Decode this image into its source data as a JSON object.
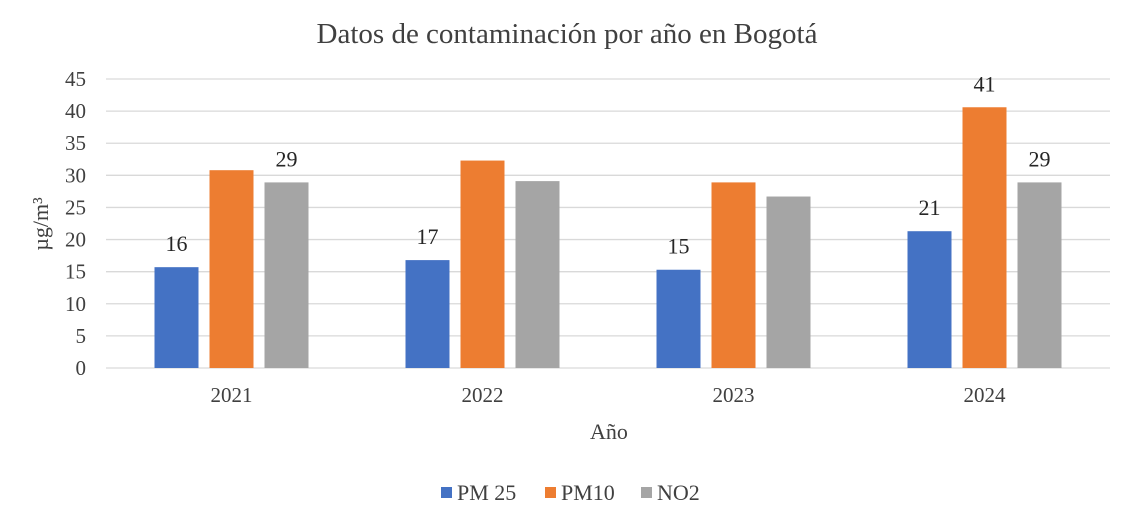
{
  "chart_data": {
    "type": "bar",
    "title": "Datos de contaminación por año en Bogotá",
    "xlabel": "Año",
    "ylabel": "µg/m³",
    "ylim": [
      0,
      45
    ],
    "y_ticks": [
      "0",
      "5",
      "10",
      "15",
      "20",
      "25",
      "30",
      "35",
      "40",
      "45"
    ],
    "categories": [
      "2021",
      "2022",
      "2023",
      "2024"
    ],
    "series": [
      {
        "name": "PM 25",
        "color": "#4472c4",
        "values": [
          15.7,
          16.8,
          15.3,
          21.3
        ],
        "data_labels": [
          "16",
          "17",
          "15",
          "21"
        ]
      },
      {
        "name": "PM10",
        "color": "#ed7d31",
        "values": [
          30.8,
          32.3,
          28.9,
          40.6
        ],
        "data_labels": [
          "",
          "",
          "",
          "41"
        ]
      },
      {
        "name": "NO2",
        "color": "#a5a5a5",
        "values": [
          28.9,
          29.1,
          26.7,
          28.9
        ],
        "data_labels": [
          "29",
          "",
          "",
          "29"
        ]
      }
    ],
    "grid": true,
    "legend_position": "bottom"
  }
}
